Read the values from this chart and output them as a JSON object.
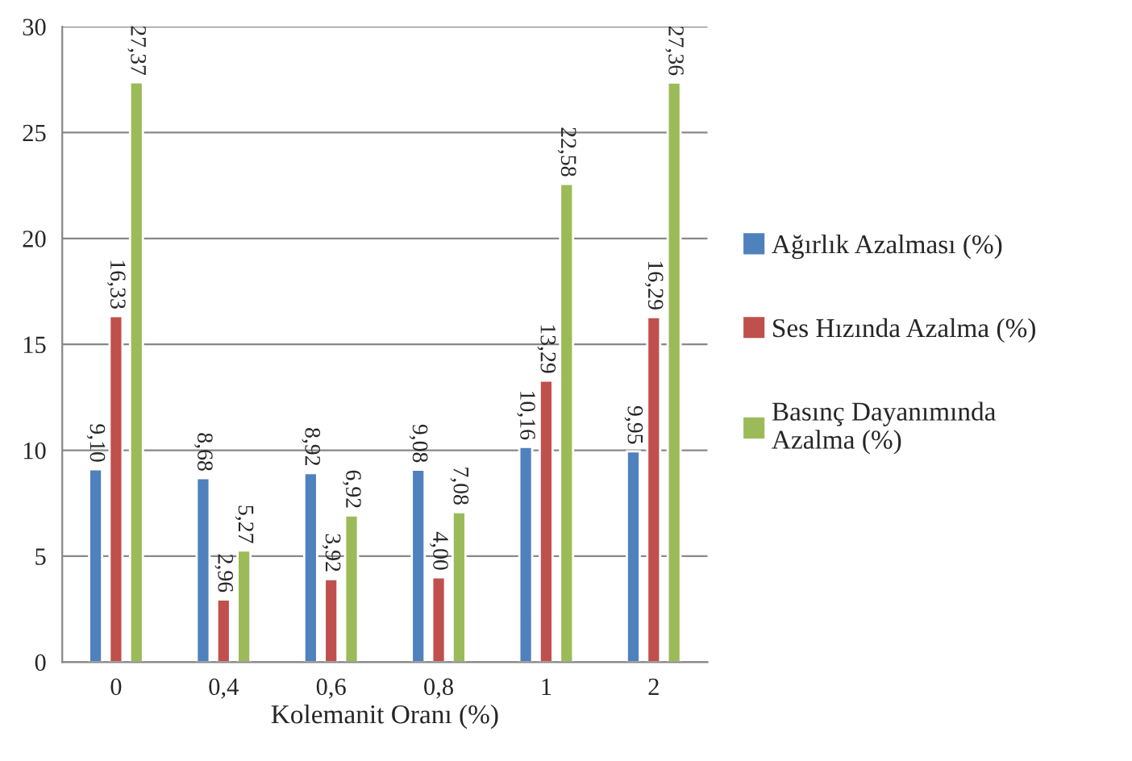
{
  "chart_data": {
    "type": "bar",
    "xlabel": "Kolemanit Oranı (%)",
    "categories": [
      "0",
      "0,4",
      "0,6",
      "0,8",
      "1",
      "2"
    ],
    "series": [
      {
        "name": "Ağırlık Azalması (%)",
        "color": "#4f81bd",
        "values": [
          9.1,
          8.68,
          8.92,
          9.08,
          10.16,
          9.95
        ],
        "value_labels": [
          "9,10",
          "8,68",
          "8,92",
          "9,08",
          "10,16",
          "9,95"
        ]
      },
      {
        "name": "Ses Hızında Azalma (%)",
        "color": "#c0504d",
        "values": [
          16.33,
          2.96,
          3.92,
          4.0,
          13.29,
          16.29
        ],
        "value_labels": [
          "16,33",
          "2,96",
          "3,92",
          "4,00",
          "13,29",
          "16,29"
        ]
      },
      {
        "name": "Basınç Dayanımında Azalma (%)",
        "color": "#9bbb59",
        "values": [
          27.37,
          5.27,
          6.92,
          7.08,
          22.58,
          27.36
        ],
        "value_labels": [
          "27,37",
          "5,27",
          "6,92",
          "7,08",
          "22,58",
          "27,36"
        ]
      }
    ],
    "ylim": [
      0,
      30
    ],
    "yticks": [
      0,
      5,
      10,
      15,
      20,
      25,
      30
    ],
    "grid": "y",
    "legend": "right"
  }
}
